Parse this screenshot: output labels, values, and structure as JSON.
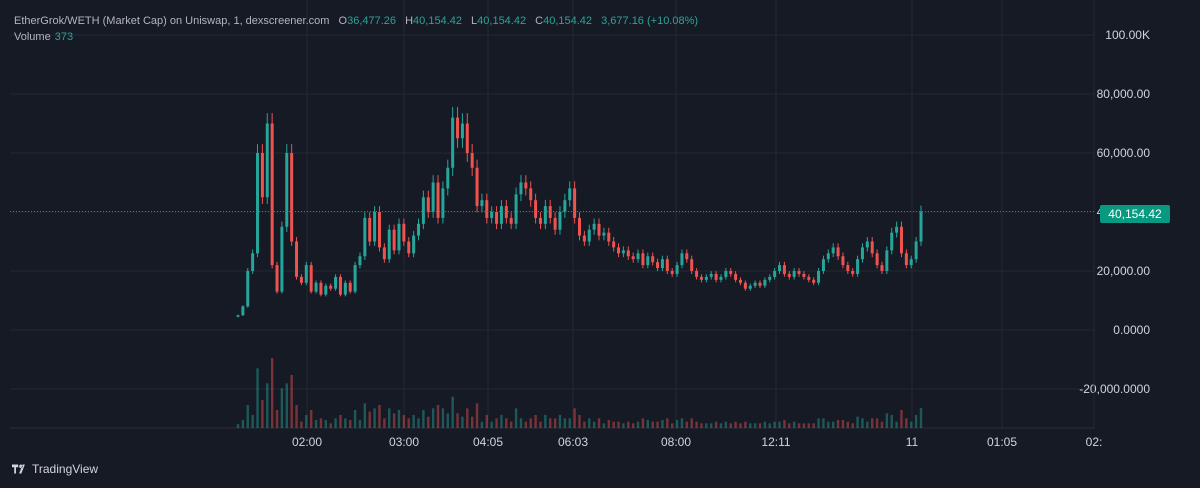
{
  "legend": {
    "title": "EtherGrok/WETH (Market Cap) on Uniswap, 1, dexscreener.com",
    "open_key": "O",
    "open": "36,477.26",
    "high_key": "H",
    "high": "40,154.42",
    "low_key": "L",
    "low": "40,154.42",
    "close_key": "C",
    "close": "40,154.42",
    "change": "3,677.16 (+10.08%)"
  },
  "volume": {
    "label": "Volume",
    "value": "373"
  },
  "last_price": "40,154.42",
  "branding": {
    "name": "TradingView",
    "logo_icon": "tradingview-logo-icon"
  },
  "colors": {
    "up": "#26a69a",
    "down": "#ef5350",
    "background": "#161a25",
    "grid": "#242832",
    "price_line": "#089981"
  },
  "chart_data": {
    "type": "candlestick",
    "title": "EtherGrok/WETH (Market Cap) on Uniswap, 1, dexscreener.com",
    "y_ticks": [
      "100.00K",
      "80,000.00",
      "60,000.00",
      "40,000.00",
      "20,000.00",
      "0.0000",
      "-20,000.0000"
    ],
    "y_tick_values": [
      100000,
      80000,
      60000,
      40000,
      20000,
      0,
      -20000
    ],
    "x_ticks": [
      "02:00",
      "03:00",
      "04:05",
      "06:03",
      "08:00",
      "12:11",
      "11",
      "01:05",
      "02:"
    ],
    "ylim": [
      -30000,
      108000
    ],
    "last_value": 40154.42,
    "grid": true,
    "series": [
      {
        "x_index_range": [
          0,
          344
        ],
        "values": [
          5000,
          8000,
          20000,
          26000,
          60000,
          45000,
          70000,
          22000,
          13000,
          35000,
          60000,
          30000,
          18000,
          16000,
          22000,
          13000,
          16000,
          12000,
          15000,
          14000,
          18000,
          12000,
          16000,
          13000,
          22000,
          25000,
          38000,
          30000,
          40000,
          28000,
          24000,
          34000,
          27000,
          36000,
          30000,
          26000,
          32000,
          36000,
          45000,
          40000,
          50000,
          38000,
          48000,
          55000,
          72000,
          65000,
          70000,
          60000,
          55000,
          42000,
          44000,
          38000,
          40000,
          36000,
          42000,
          38000,
          36000,
          46000,
          50000,
          48000,
          44000,
          38000,
          36000,
          42000,
          38000,
          34000,
          40000,
          44000,
          48000,
          38000,
          32000,
          30000,
          34000,
          36000,
          32000,
          33000,
          30000,
          28000,
          26000,
          27000,
          25000,
          24000,
          26000,
          22000,
          25000,
          23000,
          21000,
          24000,
          20000,
          19000,
          22000,
          26000,
          24000,
          20000,
          18000,
          17000,
          18000,
          19000,
          17000,
          18000,
          20000,
          19000,
          17000,
          16000,
          14000,
          15000,
          16000,
          15000,
          17000,
          18000,
          20000,
          22000,
          19000,
          18000,
          20000,
          19000,
          18000,
          17000,
          16000,
          20000,
          24000,
          26000,
          28000,
          25000,
          22000,
          20000,
          19000,
          24000,
          28000,
          30000,
          26000,
          22000,
          20000,
          27000,
          33000,
          35000,
          26000,
          22000,
          24000,
          30000,
          40154
        ]
      }
    ]
  }
}
